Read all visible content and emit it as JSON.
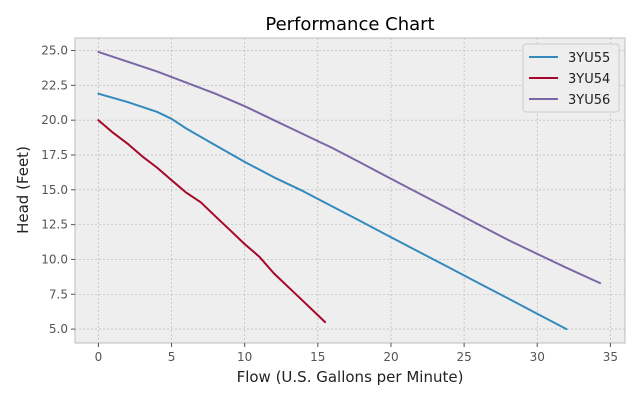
{
  "chart_data": {
    "type": "line",
    "title": "Performance Chart",
    "xlabel": "Flow (U.S. Gallons per Minute)",
    "ylabel": "Head (Feet)",
    "xlim": [
      -1.6,
      36.0
    ],
    "ylim": [
      4.0,
      25.9
    ],
    "x_ticks": [
      0,
      5,
      10,
      15,
      20,
      25,
      30,
      35
    ],
    "y_ticks": [
      5.0,
      7.5,
      10.0,
      12.5,
      15.0,
      17.5,
      20.0,
      22.5,
      25.0
    ],
    "x_tick_labels": [
      "0",
      "5",
      "10",
      "15",
      "20",
      "25",
      "30",
      "35"
    ],
    "y_tick_labels": [
      "5.0",
      "7.5",
      "10.0",
      "12.5",
      "15.0",
      "17.5",
      "20.0",
      "22.5",
      "25.0"
    ],
    "grid": true,
    "legend_position": "top-right",
    "series": [
      {
        "name": "3YU55",
        "color": "#348ABD",
        "x": [
          0,
          2,
          4,
          5,
          6,
          8,
          10,
          12,
          14,
          16,
          18,
          20,
          22,
          24,
          26,
          28,
          30,
          32
        ],
        "y": [
          21.9,
          21.3,
          20.6,
          20.1,
          19.4,
          18.2,
          17.0,
          15.9,
          14.9,
          13.8,
          12.7,
          11.6,
          10.5,
          9.4,
          8.3,
          7.2,
          6.1,
          5.0
        ]
      },
      {
        "name": "3YU54",
        "color": "#A60628",
        "x": [
          0,
          1,
          2,
          3,
          4,
          5,
          6,
          7,
          8,
          9,
          10,
          11,
          12,
          13,
          14,
          15,
          15.5
        ],
        "y": [
          20.0,
          19.1,
          18.3,
          17.4,
          16.6,
          15.7,
          14.8,
          14.1,
          13.1,
          12.1,
          11.1,
          10.2,
          9.0,
          8.0,
          7.0,
          6.0,
          5.5
        ]
      },
      {
        "name": "3YU56",
        "color": "#7A68A6",
        "x": [
          0,
          2,
          4,
          6,
          8,
          10,
          12,
          14,
          16,
          18,
          20,
          22,
          24,
          26,
          28,
          30,
          32,
          34.3
        ],
        "y": [
          24.9,
          24.2,
          23.5,
          22.7,
          21.9,
          21.0,
          20.0,
          19.0,
          18.0,
          16.9,
          15.8,
          14.7,
          13.6,
          12.5,
          11.4,
          10.4,
          9.4,
          8.3
        ]
      }
    ]
  }
}
